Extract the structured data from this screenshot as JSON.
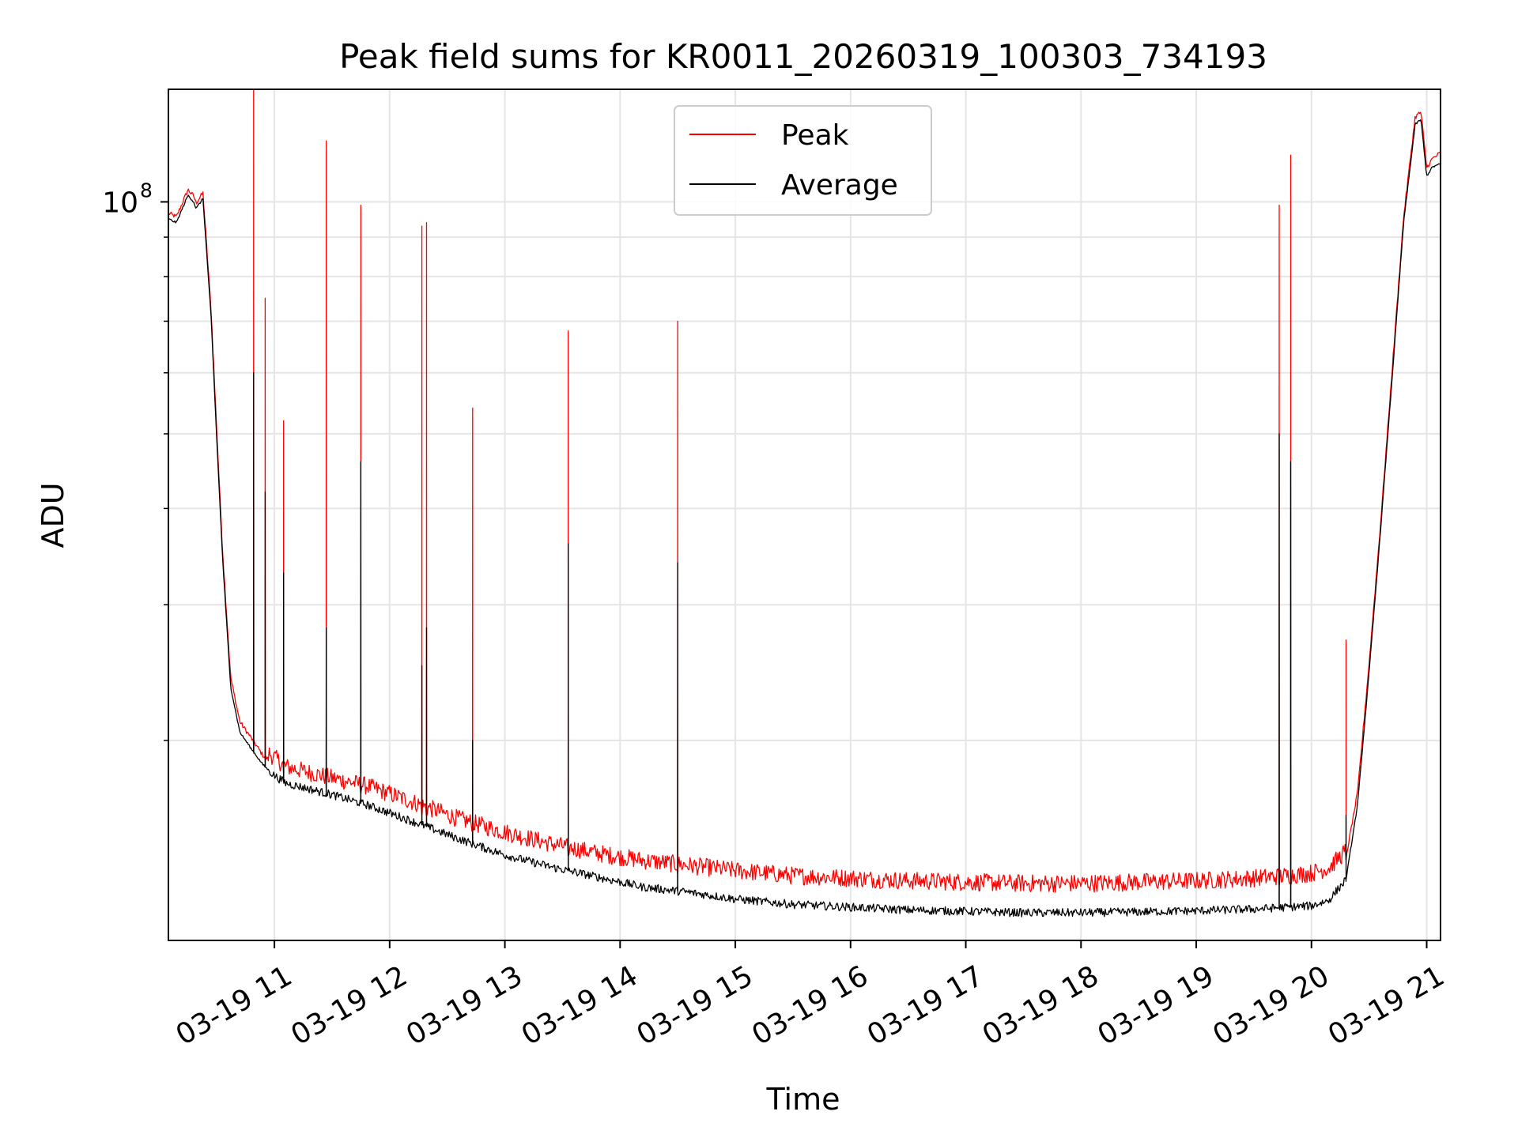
{
  "chart_data": {
    "type": "line",
    "title": "Peak field sums for KR0011_20260319_100303_734193",
    "xlabel": "Time",
    "ylabel": "ADU",
    "yscale": "log",
    "ylim": [
      11000000,
      140000000
    ],
    "xlim": [
      10.08,
      21.12
    ],
    "x_unit": "hours on 2026-03-19",
    "grid": true,
    "legend_position": "upper-center",
    "x_ticks": [
      {
        "value": 11,
        "label": "03-19 11"
      },
      {
        "value": 12,
        "label": "03-19 12"
      },
      {
        "value": 13,
        "label": "03-19 13"
      },
      {
        "value": 14,
        "label": "03-19 14"
      },
      {
        "value": 15,
        "label": "03-19 15"
      },
      {
        "value": 16,
        "label": "03-19 16"
      },
      {
        "value": 17,
        "label": "03-19 17"
      },
      {
        "value": 18,
        "label": "03-19 18"
      },
      {
        "value": 19,
        "label": "03-19 19"
      },
      {
        "value": 20,
        "label": "03-19 20"
      },
      {
        "value": 21,
        "label": "03-19 21"
      }
    ],
    "y_major_ticks": [
      {
        "value": 100000000,
        "label_base": "10",
        "label_exp": "8"
      }
    ],
    "y_minor_ticks": [
      20000000,
      30000000,
      40000000,
      50000000,
      60000000,
      70000000,
      80000000,
      90000000
    ],
    "series": [
      {
        "name": "Peak",
        "color": "#ff0000",
        "x": [
          10.08,
          10.15,
          10.25,
          10.3,
          10.32,
          10.38,
          10.45,
          10.5,
          10.55,
          10.62,
          10.7,
          10.8,
          10.9,
          11.0,
          11.1,
          11.3,
          11.5,
          11.8,
          12.0,
          12.3,
          12.6,
          13.0,
          13.4,
          13.8,
          14.2,
          14.6,
          15.0,
          15.5,
          16.0,
          16.5,
          17.0,
          17.5,
          18.0,
          18.5,
          19.0,
          19.5,
          19.8,
          20.0,
          20.15,
          20.3,
          20.4,
          20.5,
          20.6,
          20.7,
          20.8,
          20.9,
          20.95,
          21.0,
          21.05,
          21.12
        ],
        "values": [
          96000000,
          95000000,
          103000000,
          101000000,
          99000000,
          102000000,
          72000000,
          50000000,
          35000000,
          24000000,
          21000000,
          20000000,
          19000000,
          18500000,
          18000000,
          17700000,
          17400000,
          17000000,
          16600000,
          16000000,
          15400000,
          14800000,
          14300000,
          13900000,
          13600000,
          13400000,
          13200000,
          13000000,
          12900000,
          12800000,
          12750000,
          12700000,
          12700000,
          12750000,
          12800000,
          12900000,
          13000000,
          13100000,
          13300000,
          14000000,
          17000000,
          25000000,
          38000000,
          60000000,
          95000000,
          128000000,
          130000000,
          110000000,
          113000000,
          115000000
        ]
      },
      {
        "name": "Average",
        "color": "#000000",
        "x": [
          10.08,
          10.15,
          10.25,
          10.3,
          10.32,
          10.38,
          10.45,
          10.5,
          10.55,
          10.62,
          10.7,
          10.8,
          10.9,
          11.0,
          11.1,
          11.3,
          11.5,
          11.8,
          12.0,
          12.3,
          12.6,
          13.0,
          13.4,
          13.8,
          14.2,
          14.6,
          15.0,
          15.5,
          16.0,
          16.5,
          17.0,
          17.5,
          18.0,
          18.5,
          19.0,
          19.5,
          19.8,
          20.0,
          20.15,
          20.3,
          20.4,
          20.5,
          20.6,
          20.7,
          20.8,
          20.9,
          20.95,
          21.0,
          21.05,
          21.12
        ],
        "values": [
          95000000,
          94000000,
          102000000,
          100000000,
          98000000,
          101000000,
          71000000,
          49000000,
          34500000,
          23500000,
          20500000,
          19500000,
          18600000,
          18000000,
          17600000,
          17300000,
          17000000,
          16500000,
          16100000,
          15500000,
          14900000,
          14200000,
          13700000,
          13300000,
          12900000,
          12700000,
          12450000,
          12250000,
          12150000,
          12050000,
          12000000,
          11950000,
          11950000,
          11980000,
          12020000,
          12080000,
          12150000,
          12200000,
          12400000,
          13200000,
          16500000,
          24500000,
          37500000,
          59000000,
          94000000,
          126000000,
          128000000,
          108000000,
          111000000,
          112000000
        ]
      }
    ],
    "spikes": [
      {
        "x": 10.82,
        "peak": 140000000,
        "average": 60000000
      },
      {
        "x": 10.92,
        "peak": 75000000,
        "average": 42000000
      },
      {
        "x": 11.08,
        "peak": 52000000,
        "average": 33000000
      },
      {
        "x": 11.45,
        "peak": 120000000,
        "average": 28000000
      },
      {
        "x": 11.75,
        "peak": 99000000,
        "average": 46000000
      },
      {
        "x": 12.28,
        "peak": 93000000,
        "average": 25000000
      },
      {
        "x": 12.32,
        "peak": 94000000,
        "average": 28000000
      },
      {
        "x": 12.72,
        "peak": 54000000,
        "average": 20000000
      },
      {
        "x": 13.55,
        "peak": 68000000,
        "average": 36000000
      },
      {
        "x": 14.5,
        "peak": 70000000,
        "average": 34000000
      },
      {
        "x": 19.72,
        "peak": 99000000,
        "average": 50000000
      },
      {
        "x": 19.82,
        "peak": 115000000,
        "average": 46000000
      },
      {
        "x": 20.3,
        "peak": 27000000,
        "average": 16000000
      }
    ]
  },
  "legend": {
    "items": [
      {
        "label": "Peak",
        "color": "#ff0000"
      },
      {
        "label": "Average",
        "color": "#000000"
      }
    ]
  },
  "colors": {
    "grid": "#e5e5e5",
    "axes": "#000000",
    "legend_border": "#cccccc"
  }
}
